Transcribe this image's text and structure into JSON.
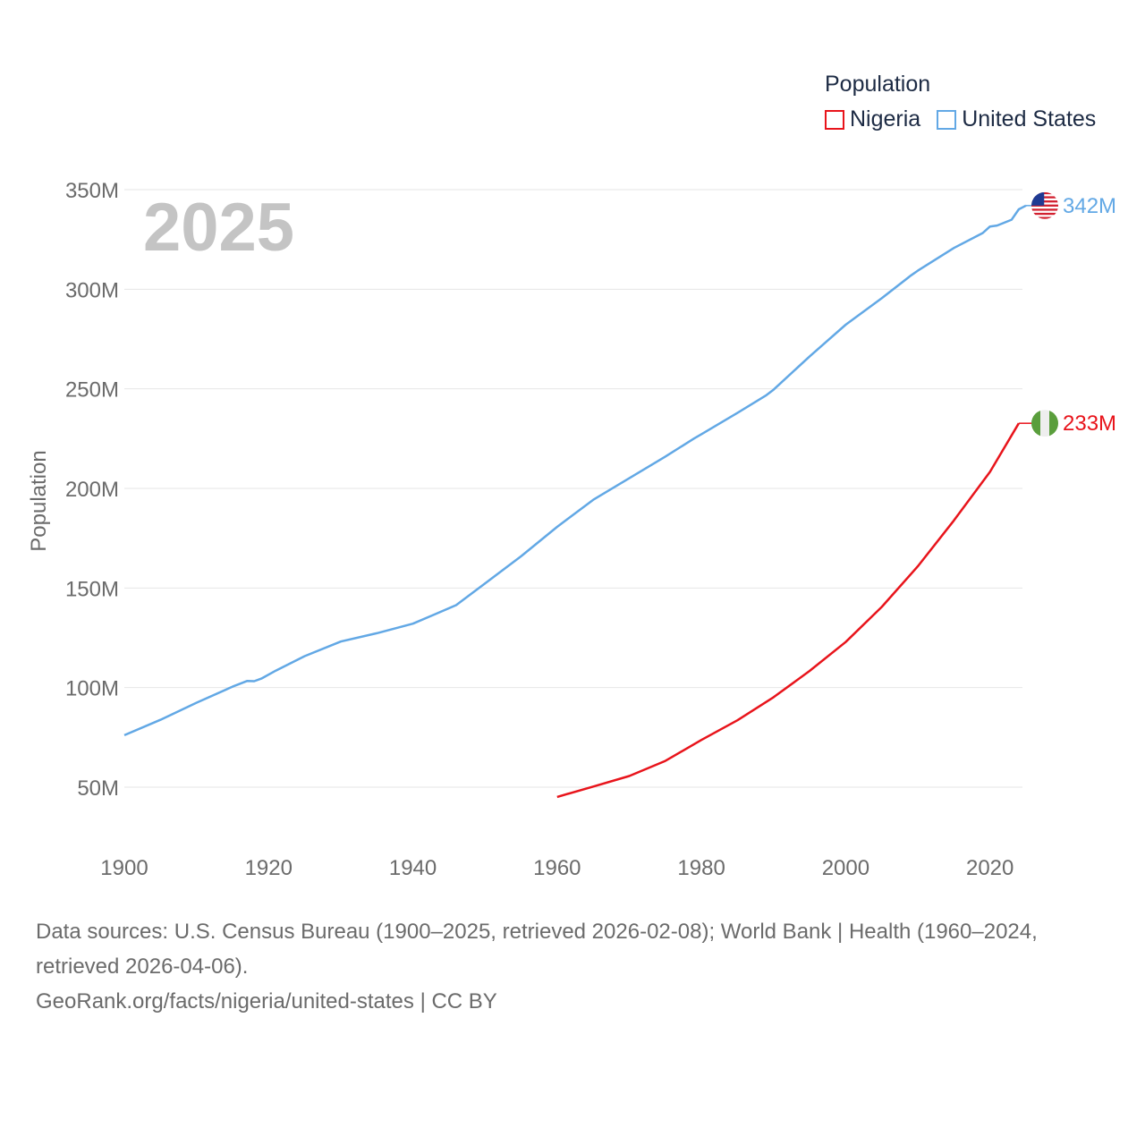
{
  "legend": {
    "title": "Population",
    "items": [
      {
        "label": "Nigeria",
        "color": "#e8141b"
      },
      {
        "label": "United States",
        "color": "#62a8e5"
      }
    ]
  },
  "year_label": "2025",
  "footer": {
    "sources": "Data sources: U.S. Census Bureau (1900–2025, retrieved 2026-02-08); World Bank | Health (1960–2024, retrieved 2026-04-06).",
    "credit": "GeoRank.org/facts/nigeria/united-states | CC BY"
  },
  "chart_data": {
    "type": "line",
    "title": "",
    "xlabel": "",
    "ylabel": "Population",
    "xlim": [
      1900,
      2025
    ],
    "ylim": [
      25000000,
      352000000
    ],
    "x_ticks": [
      1900,
      1920,
      1940,
      1960,
      1980,
      2000,
      2020
    ],
    "y_ticks": [
      50000000,
      100000000,
      150000000,
      200000000,
      250000000,
      300000000,
      350000000
    ],
    "y_tick_labels": [
      "50M",
      "100M",
      "150M",
      "200M",
      "250M",
      "300M",
      "350M"
    ],
    "grid": true,
    "series": [
      {
        "name": "United States",
        "color": "#62a8e5",
        "end_label": "342M",
        "flag": "us-flag",
        "x": [
          1900,
          1905,
          1910,
          1915,
          1917,
          1918,
          1919,
          1921,
          1925,
          1930,
          1935,
          1940,
          1943,
          1946,
          1950,
          1955,
          1960,
          1965,
          1970,
          1975,
          1979,
          1980,
          1985,
          1989,
          1990,
          1995,
          2000,
          2005,
          2009,
          2010,
          2015,
          2019,
          2020,
          2021,
          2023,
          2024,
          2025
        ],
        "y": [
          76100000,
          83800000,
          92400000,
          100500000,
          103300000,
          103200000,
          104500000,
          108500000,
          115800000,
          123100000,
          127300000,
          132100000,
          136700000,
          141400000,
          152300000,
          165900000,
          180700000,
          194300000,
          205100000,
          216000000,
          225100000,
          227200000,
          237900000,
          246800000,
          249600000,
          266300000,
          282200000,
          295500000,
          306800000,
          309300000,
          320700000,
          328200000,
          331500000,
          332000000,
          334900000,
          340100000,
          342000000
        ]
      },
      {
        "name": "Nigeria",
        "color": "#e8141b",
        "end_label": "233M",
        "flag": "nigeria-flag",
        "x": [
          1960,
          1965,
          1970,
          1975,
          1980,
          1985,
          1990,
          1995,
          2000,
          2005,
          2010,
          2015,
          2020,
          2024
        ],
        "y": [
          45100000,
          50300000,
          55600000,
          63200000,
          73700000,
          83600000,
          95200000,
          108400000,
          122900000,
          140500000,
          160900000,
          183900000,
          208300000,
          232700000
        ]
      }
    ]
  }
}
